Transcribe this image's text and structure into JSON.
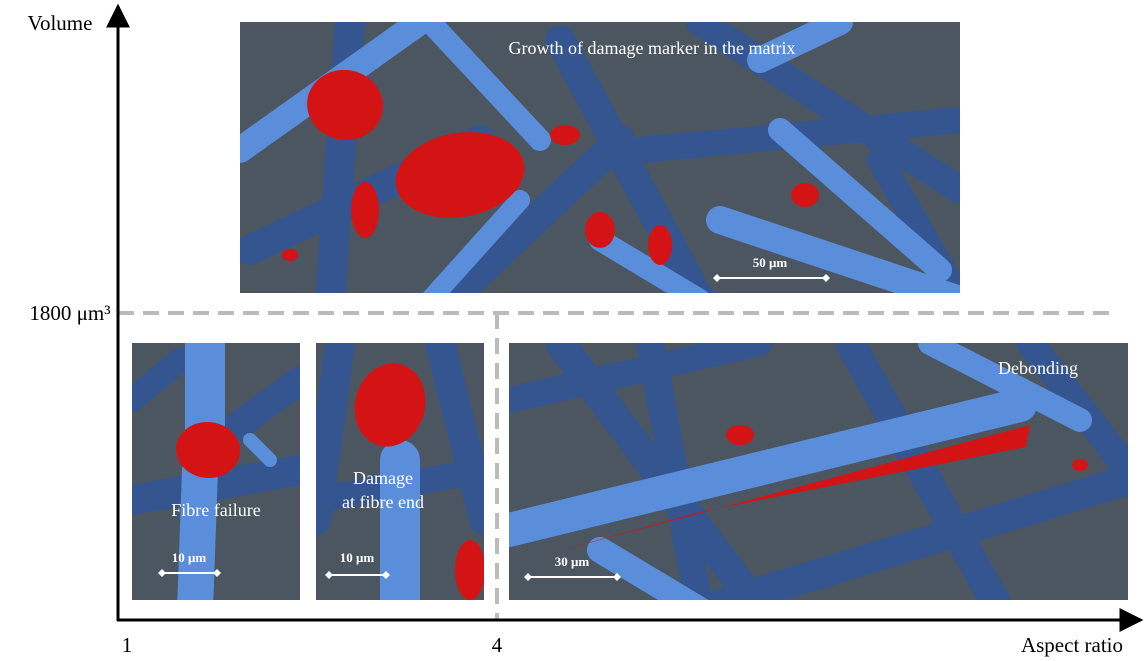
{
  "axes": {
    "y_label": "Volume",
    "y_marker": "1800 μm³",
    "x_ticks": [
      "1",
      "4"
    ],
    "x_label": "Aspect ratio"
  },
  "panels": [
    {
      "caption": "Growth of damage marker in the matrix",
      "scale_bar": "50 μm"
    },
    {
      "caption": "Fibre failure",
      "scale_bar": "10 μm"
    },
    {
      "caption_lines": [
        "Damage",
        "at fibre end"
      ],
      "scale_bar": "10 μm"
    },
    {
      "caption": "Debonding",
      "scale_bar": "30 μm"
    }
  ]
}
